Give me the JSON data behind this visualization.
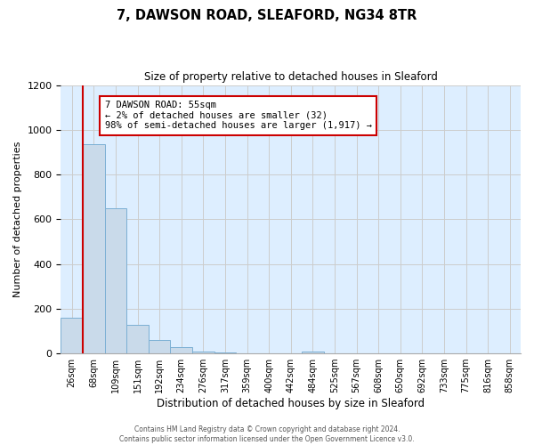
{
  "title": "7, DAWSON ROAD, SLEAFORD, NG34 8TR",
  "subtitle": "Size of property relative to detached houses in Sleaford",
  "xlabel": "Distribution of detached houses by size in Sleaford",
  "ylabel": "Number of detached properties",
  "bar_labels": [
    "26sqm",
    "68sqm",
    "109sqm",
    "151sqm",
    "192sqm",
    "234sqm",
    "276sqm",
    "317sqm",
    "359sqm",
    "400sqm",
    "442sqm",
    "484sqm",
    "525sqm",
    "567sqm",
    "608sqm",
    "650sqm",
    "692sqm",
    "733sqm",
    "775sqm",
    "816sqm",
    "858sqm"
  ],
  "bar_values": [
    160,
    935,
    650,
    128,
    62,
    28,
    8,
    5,
    0,
    0,
    0,
    10,
    0,
    0,
    0,
    0,
    0,
    0,
    0,
    0,
    0
  ],
  "bar_color": "#c9daea",
  "bar_edge_color": "#7bafd4",
  "vline_color": "#cc0000",
  "annotation_text": "7 DAWSON ROAD: 55sqm\n← 2% of detached houses are smaller (32)\n98% of semi-detached houses are larger (1,917) →",
  "annotation_box_color": "#ffffff",
  "annotation_box_edge_color": "#cc0000",
  "ylim": [
    0,
    1200
  ],
  "yticks": [
    0,
    200,
    400,
    600,
    800,
    1000,
    1200
  ],
  "grid_color": "#cccccc",
  "background_color": "#ddeeff",
  "footer_line1": "Contains HM Land Registry data © Crown copyright and database right 2024.",
  "footer_line2": "Contains public sector information licensed under the Open Government Licence v3.0."
}
